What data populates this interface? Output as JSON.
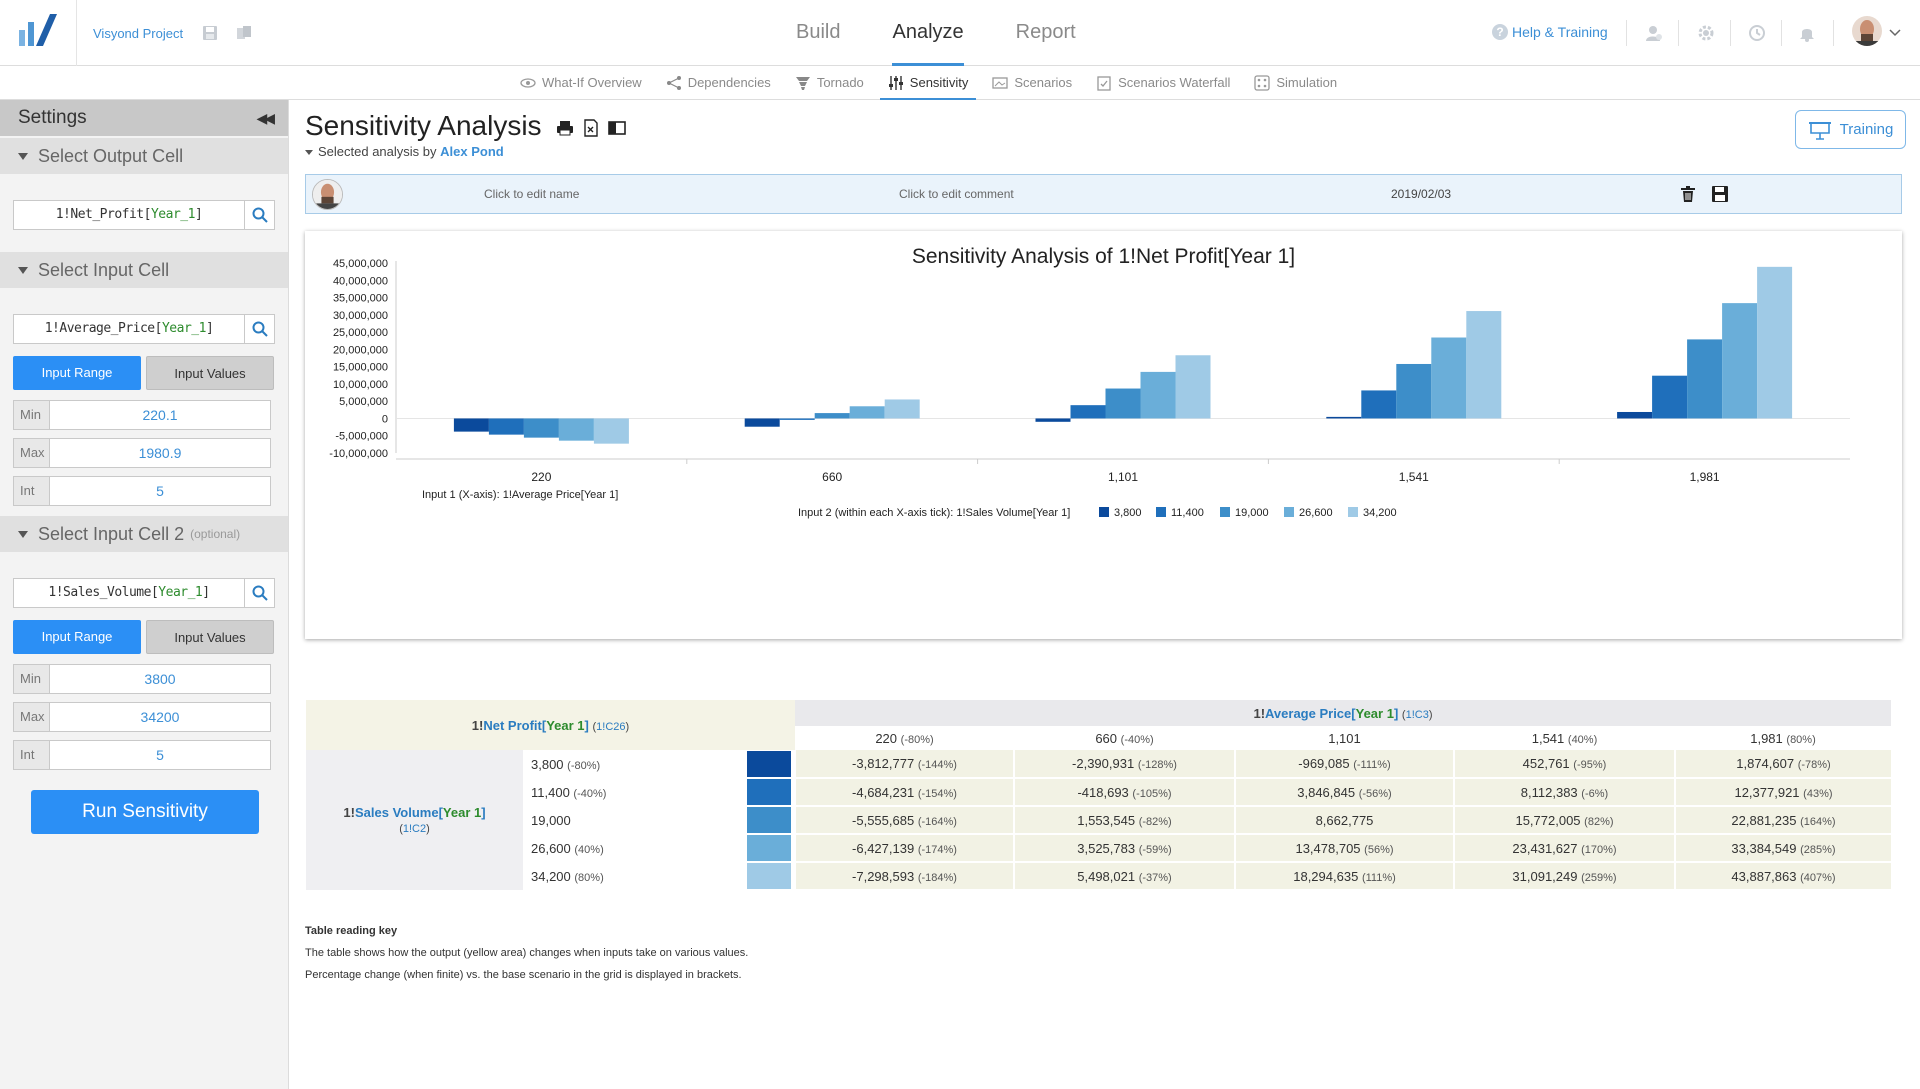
{
  "header": {
    "project_name": "Visyond Project",
    "tabs": [
      "Build",
      "Analyze",
      "Report"
    ],
    "active_tab": "Analyze",
    "help_label": "Help & Training"
  },
  "subtabs": {
    "items": [
      "What-If Overview",
      "Dependencies",
      "Tornado",
      "Sensitivity",
      "Scenarios",
      "Scenarios Waterfall",
      "Simulation"
    ],
    "active": "Sensitivity"
  },
  "sidebar": {
    "title": "Settings",
    "output_section": "Select Output Cell",
    "output_cell": {
      "prefix": "1!Net_Profit[",
      "bracket": "Year_1",
      "suffix": "]"
    },
    "input_section": "Select Input Cell",
    "input_cell": {
      "prefix": "1!Average_Price[",
      "bracket": "Year_1",
      "suffix": "]"
    },
    "input2_section": "Select Input Cell 2",
    "input2_optional": "(optional)",
    "input2_cell": {
      "prefix": "1!Sales_Volume[",
      "bracket": "Year_1",
      "suffix": "]"
    },
    "range_label": "Input Range",
    "values_label": "Input Values",
    "input1_params": {
      "min_label": "Min",
      "min": "220.1",
      "max_label": "Max",
      "max": "1980.9",
      "int_label": "Int",
      "int": "5"
    },
    "input2_params": {
      "min_label": "Min",
      "min": "3800",
      "max_label": "Max",
      "max": "34200",
      "int_label": "Int",
      "int": "5"
    },
    "run_label": "Run Sensitivity"
  },
  "main": {
    "title": "Sensitivity Analysis",
    "selected_by_label": "Selected analysis by",
    "selected_by_name": "Alex Pond",
    "training_label": "Training",
    "analysis": {
      "name_placeholder": "Click to edit name",
      "comment_placeholder": "Click to edit comment",
      "date": "2019/02/03"
    }
  },
  "chart_data": {
    "type": "bar",
    "title": "Sensitivity Analysis of 1!Net Profit[Year 1]",
    "categories": [
      "220",
      "660",
      "1,101",
      "1,541",
      "1,981"
    ],
    "xlabel": "Input 1 (X-axis): 1!Average Price[Year 1]",
    "legend_title": "Input 2 (within each X-axis tick): 1!Sales Volume[Year 1]",
    "legend_position": "bottom",
    "ylim": [
      -10000000,
      45000000
    ],
    "yticks": [
      45000000,
      40000000,
      35000000,
      30000000,
      25000000,
      20000000,
      15000000,
      10000000,
      5000000,
      0,
      -5000000,
      -10000000
    ],
    "ytick_labels": [
      "45,000,000",
      "40,000,000",
      "35,000,000",
      "30,000,000",
      "25,000,000",
      "20,000,000",
      "15,000,000",
      "10,000,000",
      "5,000,000",
      "0",
      "-5,000,000",
      "-10,000,000"
    ],
    "series": [
      {
        "name": "3,800",
        "color": "#0b4a9c",
        "values": [
          -3812777,
          -2390931,
          -969085,
          452761,
          1874607
        ]
      },
      {
        "name": "11,400",
        "color": "#1f6fbb",
        "values": [
          -4684231,
          -418693,
          3846845,
          8112383,
          12377921
        ]
      },
      {
        "name": "19,000",
        "color": "#3d8ec9",
        "values": [
          -5555685,
          1553545,
          8662775,
          15772005,
          22881235
        ]
      },
      {
        "name": "26,600",
        "color": "#6aaed9",
        "values": [
          -6427139,
          3525783,
          13478705,
          23431627,
          33384549
        ]
      },
      {
        "name": "34,200",
        "color": "#9fcae6",
        "values": [
          -7298593,
          5498021,
          18294635,
          31091249,
          43887863
        ]
      }
    ]
  },
  "table": {
    "output": {
      "prefix": "1!",
      "name": "Net Profit",
      "bracket": "Year 1",
      "ref": "1!C26"
    },
    "input1": {
      "prefix": "1!",
      "name": "Average Price",
      "bracket": "Year 1",
      "ref": "1!C3"
    },
    "input2": {
      "prefix": "1!",
      "name": "Sales Volume",
      "bracket": "Year 1",
      "ref": "1!C2"
    },
    "columns": [
      {
        "v": "220",
        "p": "(-80%)"
      },
      {
        "v": "660",
        "p": "(-40%)"
      },
      {
        "v": "1,101",
        "p": ""
      },
      {
        "v": "1,541",
        "p": "(40%)"
      },
      {
        "v": "1,981",
        "p": "(80%)"
      }
    ],
    "rows": [
      {
        "label": "3,800",
        "p": "(-80%)",
        "color": "#0b4a9c",
        "cells": [
          {
            "v": "-3,812,777",
            "p": "(-144%)"
          },
          {
            "v": "-2,390,931",
            "p": "(-128%)"
          },
          {
            "v": "-969,085",
            "p": "(-111%)"
          },
          {
            "v": "452,761",
            "p": "(-95%)"
          },
          {
            "v": "1,874,607",
            "p": "(-78%)"
          }
        ]
      },
      {
        "label": "11,400",
        "p": "(-40%)",
        "color": "#1f6fbb",
        "cells": [
          {
            "v": "-4,684,231",
            "p": "(-154%)"
          },
          {
            "v": "-418,693",
            "p": "(-105%)"
          },
          {
            "v": "3,846,845",
            "p": "(-56%)"
          },
          {
            "v": "8,112,383",
            "p": "(-6%)"
          },
          {
            "v": "12,377,921",
            "p": "(43%)"
          }
        ]
      },
      {
        "label": "19,000",
        "p": "",
        "color": "#3d8ec9",
        "cells": [
          {
            "v": "-5,555,685",
            "p": "(-164%)"
          },
          {
            "v": "1,553,545",
            "p": "(-82%)"
          },
          {
            "v": "8,662,775",
            "p": ""
          },
          {
            "v": "15,772,005",
            "p": "(82%)"
          },
          {
            "v": "22,881,235",
            "p": "(164%)"
          }
        ]
      },
      {
        "label": "26,600",
        "p": "(40%)",
        "color": "#6aaed9",
        "cells": [
          {
            "v": "-6,427,139",
            "p": "(-174%)"
          },
          {
            "v": "3,525,783",
            "p": "(-59%)"
          },
          {
            "v": "13,478,705",
            "p": "(56%)"
          },
          {
            "v": "23,431,627",
            "p": "(170%)"
          },
          {
            "v": "33,384,549",
            "p": "(285%)"
          }
        ]
      },
      {
        "label": "34,200",
        "p": "(80%)",
        "color": "#9fcae6",
        "cells": [
          {
            "v": "-7,298,593",
            "p": "(-184%)"
          },
          {
            "v": "5,498,021",
            "p": "(-37%)"
          },
          {
            "v": "18,294,635",
            "p": "(111%)"
          },
          {
            "v": "31,091,249",
            "p": "(259%)"
          },
          {
            "v": "43,887,863",
            "p": "(407%)"
          }
        ]
      }
    ]
  },
  "reading_key": {
    "title": "Table reading key",
    "line1": "The table shows how the output (yellow area) changes when inputs take on various values.",
    "line2": "Percentage change (when finite) vs. the base scenario in the grid is displayed in brackets."
  }
}
